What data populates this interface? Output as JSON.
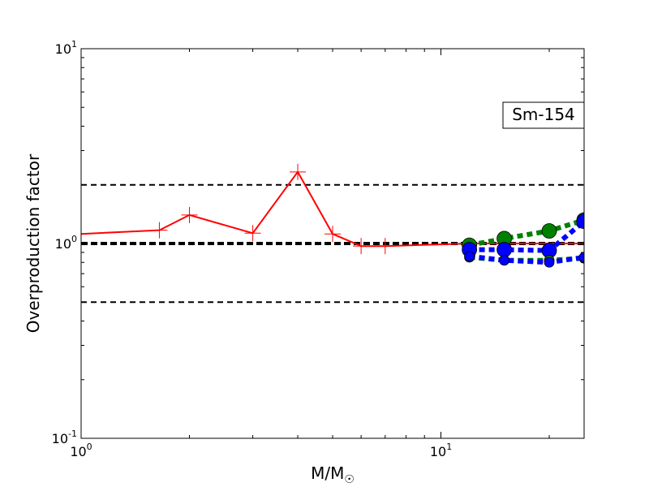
{
  "chart_data": {
    "type": "line",
    "xscale": "log",
    "yscale": "log",
    "xlim": [
      1,
      25
    ],
    "ylim": [
      0.1,
      10
    ],
    "xlabel": "M/M",
    "xlabel_subscript": "☉",
    "ylabel": "Overproduction factor",
    "x_ticks": [
      {
        "value": 1,
        "base": "10",
        "exp": "0"
      },
      {
        "value": 10,
        "base": "10",
        "exp": "1"
      }
    ],
    "y_ticks": [
      {
        "value": 0.1,
        "base": "10",
        "exp": "-1"
      },
      {
        "value": 1,
        "base": "10",
        "exp": "0"
      },
      {
        "value": 10,
        "base": "10",
        "exp": "1"
      }
    ],
    "annotation": "Sm-154",
    "reference_lines": [
      {
        "y": 2.0,
        "style": "dashed",
        "weight": "thin",
        "color": "#000000"
      },
      {
        "y": 1.0,
        "style": "dashed",
        "weight": "thick",
        "color": "#000000"
      },
      {
        "y": 0.5,
        "style": "dashed",
        "weight": "thin",
        "color": "#000000"
      }
    ],
    "series": [
      {
        "color": "#ff0000",
        "line": "solid",
        "marker": "plus",
        "x": [
          1.0,
          1.65,
          2.0,
          3.0,
          4.0,
          5.0,
          6.0,
          7.0,
          12.0,
          25.0
        ],
        "y": [
          1.12,
          1.17,
          1.4,
          1.13,
          2.33,
          1.12,
          0.97,
          0.97,
          1.0,
          1.0
        ],
        "markers_x": [
          1.65,
          2.0,
          3.0,
          4.0,
          5.0,
          6.0,
          7.0
        ]
      },
      {
        "color": "#008000",
        "line": "dotted",
        "marker": "circle",
        "x": [
          12,
          15,
          20,
          25
        ],
        "y": [
          0.98,
          1.06,
          1.16,
          1.32
        ]
      },
      {
        "color": "#0000ff",
        "line": "dotted",
        "marker": "circle",
        "x": [
          12,
          15,
          20,
          25
        ],
        "y": [
          0.93,
          0.93,
          0.92,
          1.3
        ]
      },
      {
        "color": "#008000",
        "line": "dotted",
        "marker": "circle-small",
        "x": [
          12,
          15,
          20,
          25
        ],
        "y": [
          0.85,
          0.82,
          0.82,
          0.84
        ]
      },
      {
        "color": "#0000ff",
        "line": "dotted",
        "marker": "circle-small",
        "x": [
          12,
          15,
          20,
          25
        ],
        "y": [
          0.86,
          0.82,
          0.8,
          0.85
        ]
      }
    ]
  }
}
